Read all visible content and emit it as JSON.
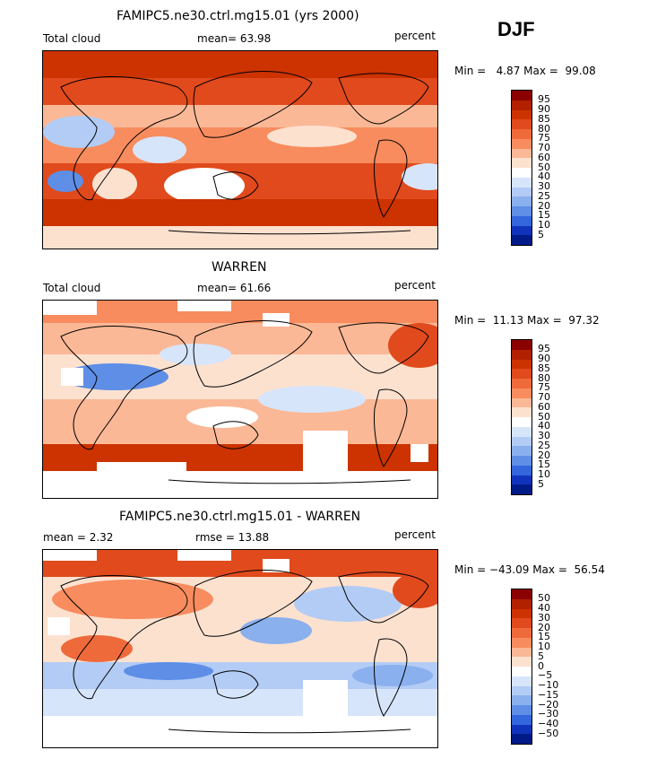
{
  "season": "DJF",
  "panels": [
    {
      "title": "FAMIPC5.ne30.ctrl.mg15.01 (yrs 2000)",
      "left_label": "Total cloud",
      "center_label": "mean=  63.98",
      "right_label": "percent",
      "minmax": "Min =   4.87 Max =  99.08",
      "colorbar_labels": [
        "95",
        "90",
        "85",
        "80",
        "75",
        "70",
        "60",
        "50",
        "40",
        "30",
        "25",
        "20",
        "15",
        "10",
        "5"
      ],
      "colorbar_colors": [
        "#8b0000",
        "#b22000",
        "#cc3300",
        "#e04a1c",
        "#ef6a3a",
        "#f88c5e",
        "#fbb896",
        "#fde1cf",
        "#ffffff",
        "#d7e5fb",
        "#b3ccf5",
        "#8ab0ee",
        "#5e8ee6",
        "#3366dd",
        "#1133bb",
        "#001a88"
      ]
    },
    {
      "title": "WARREN",
      "left_label": "Total cloud",
      "center_label": "mean=  61.66",
      "right_label": "percent",
      "minmax": "Min =  11.13 Max =  97.32",
      "colorbar_labels": [
        "95",
        "90",
        "85",
        "80",
        "75",
        "70",
        "60",
        "50",
        "40",
        "30",
        "25",
        "20",
        "15",
        "10",
        "5"
      ],
      "colorbar_colors": [
        "#8b0000",
        "#b22000",
        "#cc3300",
        "#e04a1c",
        "#ef6a3a",
        "#f88c5e",
        "#fbb896",
        "#fde1cf",
        "#ffffff",
        "#d7e5fb",
        "#b3ccf5",
        "#8ab0ee",
        "#5e8ee6",
        "#3366dd",
        "#1133bb",
        "#001a88"
      ]
    },
    {
      "title": "FAMIPC5.ne30.ctrl.mg15.01 - WARREN",
      "left_label": "mean =    2.32",
      "center_label": "rmse =   13.88",
      "right_label": "percent",
      "minmax": "Min = −43.09 Max =  56.54",
      "colorbar_labels": [
        "50",
        "40",
        "30",
        "20",
        "15",
        "10",
        "5",
        "0",
        "−5",
        "−10",
        "−15",
        "−20",
        "−30",
        "−40",
        "−50"
      ],
      "colorbar_colors": [
        "#8b0000",
        "#b22000",
        "#cc3300",
        "#e04a1c",
        "#ef6a3a",
        "#f88c5e",
        "#fbb896",
        "#fde1cf",
        "#ffffff",
        "#d7e5fb",
        "#b3ccf5",
        "#8ab0ee",
        "#5e8ee6",
        "#3366dd",
        "#1133bb",
        "#001a88"
      ]
    }
  ]
}
